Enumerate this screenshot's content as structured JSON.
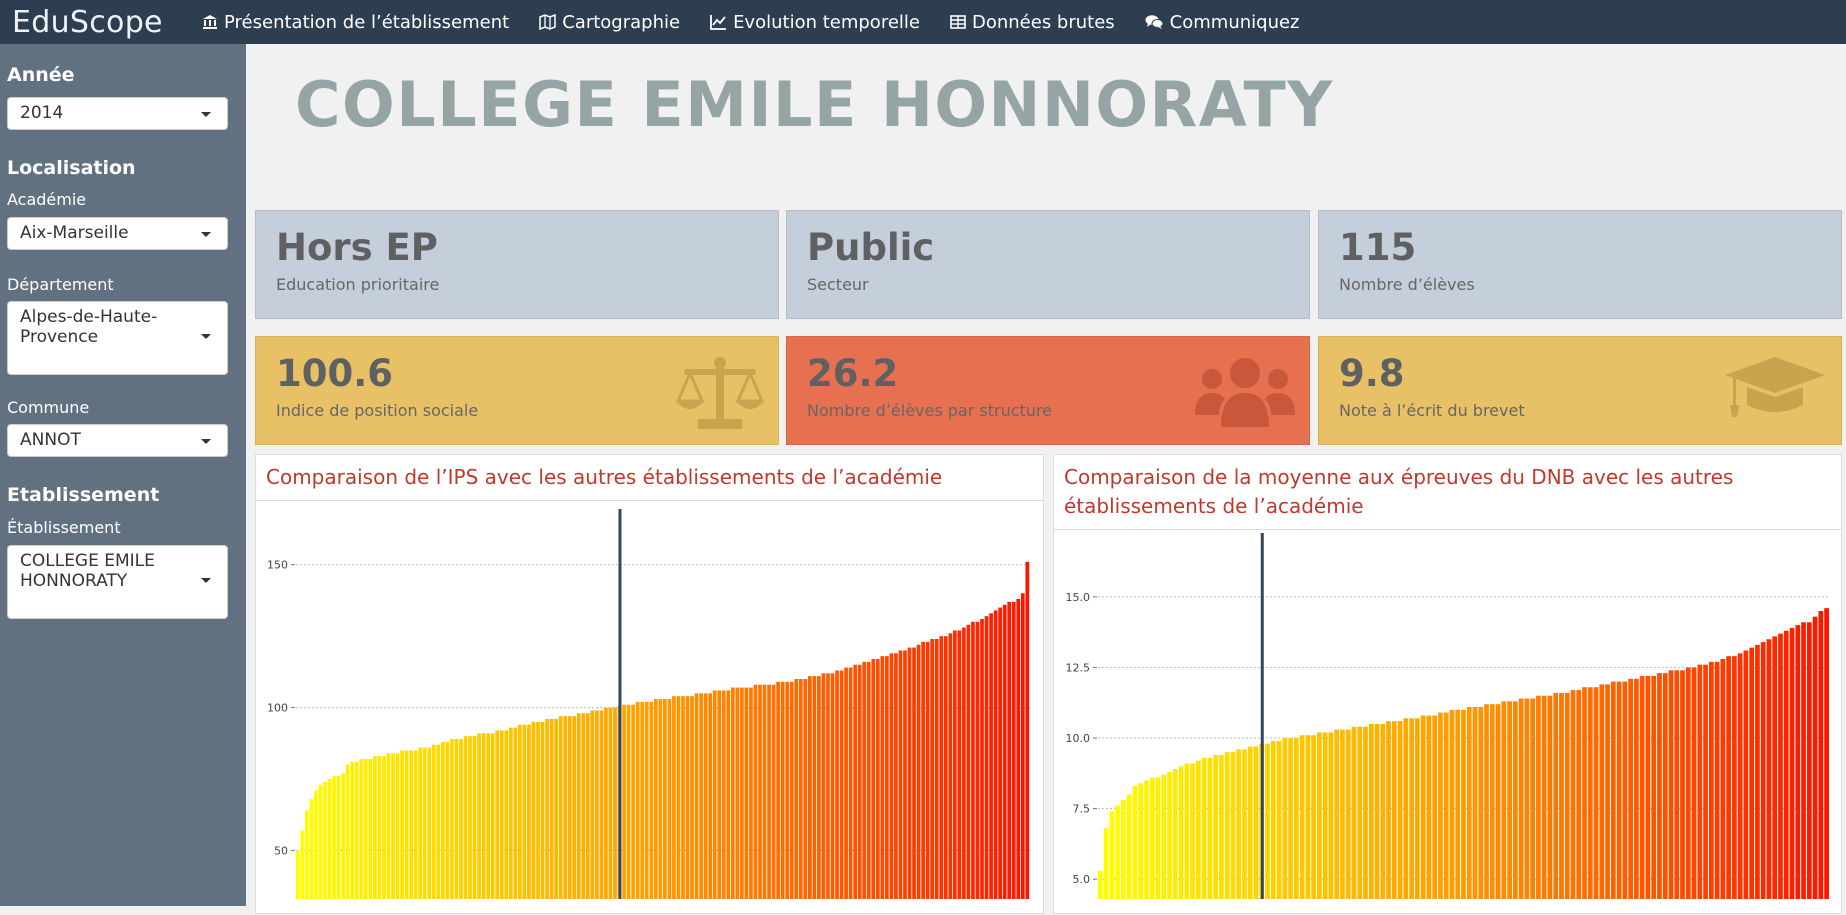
{
  "app": {
    "brand": "EduScope"
  },
  "nav": {
    "items": [
      {
        "label": "Présentation de l’établissement",
        "icon": "bank-icon"
      },
      {
        "label": "Cartographie",
        "icon": "map-icon"
      },
      {
        "label": "Evolution temporelle",
        "icon": "line-chart-icon"
      },
      {
        "label": "Données brutes",
        "icon": "table-icon"
      },
      {
        "label": "Communiquez",
        "icon": "comments-icon"
      }
    ]
  },
  "sidebar": {
    "annee_heading": "Année",
    "annee_value": "2014",
    "localisation_heading": "Localisation",
    "academie_label": "Académie",
    "academie_value": "Aix-Marseille",
    "departement_label": "Département",
    "departement_value": "Alpes-de-Haute-Provence",
    "commune_label": "Commune",
    "commune_value": "ANNOT",
    "etablissement_heading": "Etablissement",
    "etablissement_label": "Établissement",
    "etablissement_value": "COLLEGE EMILE HONNORATY"
  },
  "page": {
    "title": "COLLEGE EMILE HONNORATY"
  },
  "value_boxes": [
    {
      "value": "Hors EP",
      "subtitle": "Education prioritaire",
      "color": "#c5cfdb"
    },
    {
      "value": "Public",
      "subtitle": "Secteur",
      "color": "#c5cfdb"
    },
    {
      "value": "115",
      "subtitle": "Nombre d’élèves",
      "color": "#c5cfdb"
    },
    {
      "value": "100.6",
      "subtitle": "Indice de position sociale",
      "color": "#e8c166",
      "icon": "balance-scale-icon"
    },
    {
      "value": "26.2",
      "subtitle": "Nombre d’élèves par structure",
      "color": "#e67050",
      "icon": "users-icon"
    },
    {
      "value": "9.8",
      "subtitle": "Note à l’écrit du brevet",
      "color": "#e8c166",
      "icon": "graduation-cap-icon"
    }
  ],
  "chart_data": [
    {
      "type": "bar",
      "title": "Comparaison de l’IPS avec les autres établissements de l’académie",
      "ylim": [
        33,
        152
      ],
      "yticks": [
        50,
        100,
        150
      ],
      "tick_labels": [
        "50",
        "100",
        "150"
      ],
      "grid": true,
      "highlight_value": 100.6,
      "values": [
        50,
        57,
        64,
        68,
        71,
        73,
        74,
        75,
        76,
        76,
        77,
        80,
        81,
        81,
        82,
        82,
        82,
        83,
        83,
        83,
        84,
        84,
        84,
        85,
        85,
        85,
        85,
        86,
        86,
        86,
        87,
        87,
        88,
        88,
        89,
        89,
        89,
        90,
        90,
        90,
        91,
        91,
        91,
        91,
        92,
        92,
        92,
        93,
        93,
        94,
        94,
        94,
        95,
        95,
        95,
        96,
        96,
        96,
        97,
        97,
        97,
        97,
        98,
        98,
        98,
        99,
        99,
        99,
        100,
        100,
        100,
        100.6,
        101,
        101,
        101,
        102,
        102,
        102,
        102,
        103,
        103,
        103,
        103,
        104,
        104,
        104,
        104,
        104,
        105,
        105,
        105,
        105,
        106,
        106,
        106,
        106,
        107,
        107,
        107,
        107,
        107,
        108,
        108,
        108,
        108,
        108,
        109,
        109,
        109,
        109,
        110,
        110,
        110,
        111,
        111,
        111,
        112,
        112,
        112,
        113,
        113,
        114,
        114,
        115,
        115,
        116,
        116,
        117,
        117,
        118,
        118,
        119,
        119,
        120,
        120,
        121,
        121,
        122,
        123,
        123,
        124,
        124,
        125,
        125,
        126,
        127,
        127,
        128,
        129,
        130,
        130,
        131,
        132,
        133,
        134,
        135,
        136,
        137,
        137,
        138,
        140,
        151
      ]
    },
    {
      "type": "bar",
      "title": "Comparaison de la moyenne aux épreuves du DNB avec les autres établissements de l’académie",
      "ylim": [
        4.3,
        16.2
      ],
      "yticks": [
        5.0,
        7.5,
        10.0,
        12.5,
        15.0
      ],
      "tick_labels": [
        "5.0",
        "7.5",
        "10.0",
        "12.5",
        "15.0"
      ],
      "grid": true,
      "highlight_value": 9.8,
      "values": [
        5.3,
        6.8,
        7.4,
        7.6,
        7.8,
        8.0,
        8.3,
        8.4,
        8.5,
        8.6,
        8.6,
        8.7,
        8.8,
        8.9,
        9.0,
        9.1,
        9.1,
        9.2,
        9.3,
        9.3,
        9.4,
        9.4,
        9.5,
        9.5,
        9.6,
        9.6,
        9.7,
        9.7,
        9.8,
        9.8,
        9.9,
        9.9,
        10.0,
        10.0,
        10.0,
        10.1,
        10.1,
        10.1,
        10.2,
        10.2,
        10.2,
        10.3,
        10.3,
        10.3,
        10.4,
        10.4,
        10.4,
        10.5,
        10.5,
        10.5,
        10.6,
        10.6,
        10.6,
        10.7,
        10.7,
        10.7,
        10.8,
        10.8,
        10.8,
        10.9,
        10.9,
        11.0,
        11.0,
        11.0,
        11.1,
        11.1,
        11.1,
        11.2,
        11.2,
        11.2,
        11.3,
        11.3,
        11.3,
        11.4,
        11.4,
        11.4,
        11.5,
        11.5,
        11.5,
        11.6,
        11.6,
        11.6,
        11.7,
        11.7,
        11.8,
        11.8,
        11.8,
        11.9,
        11.9,
        12.0,
        12.0,
        12.0,
        12.1,
        12.1,
        12.2,
        12.2,
        12.2,
        12.3,
        12.3,
        12.4,
        12.4,
        12.4,
        12.5,
        12.5,
        12.6,
        12.6,
        12.7,
        12.7,
        12.8,
        12.9,
        12.9,
        13.0,
        13.1,
        13.2,
        13.3,
        13.4,
        13.5,
        13.6,
        13.7,
        13.8,
        13.9,
        14.0,
        14.1,
        14.1,
        14.3,
        14.5,
        14.6
      ]
    }
  ]
}
